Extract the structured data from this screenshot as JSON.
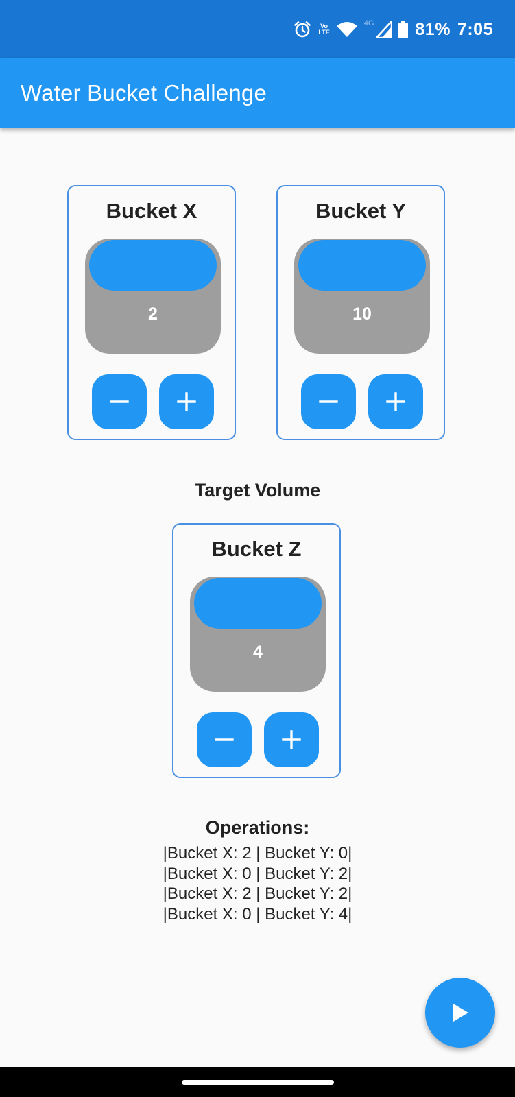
{
  "status_bar": {
    "volte_top": "Vo",
    "volte_bottom": "LTE",
    "network": "4G",
    "battery": "81%",
    "time": "7:05",
    "icons": [
      "alarm-icon",
      "volte-icon",
      "wifi-icon",
      "signal-icon",
      "battery-icon"
    ]
  },
  "app_bar": {
    "title": "Water Bucket Challenge"
  },
  "buckets": {
    "x": {
      "title": "Bucket X",
      "value": "2"
    },
    "y": {
      "title": "Bucket Y",
      "value": "10"
    },
    "z": {
      "title": "Bucket Z",
      "value": "4"
    }
  },
  "controls": {
    "minus_icon": "minus-icon",
    "plus_icon": "plus-icon"
  },
  "target": {
    "label": "Target Volume"
  },
  "operations": {
    "title": "Operations:",
    "items": [
      "|Bucket X: 2 | Bucket Y: 0|",
      "|Bucket X: 0 | Bucket Y: 2|",
      "|Bucket X: 2 | Bucket Y: 2|",
      "|Bucket X: 0 | Bucket Y: 4|"
    ]
  },
  "fab": {
    "icon": "play-icon"
  },
  "colors": {
    "status_bar": "#1976d2",
    "app_bar": "#2196f3",
    "accent": "#2196f3",
    "bucket_body": "#9e9e9e",
    "card_border": "#4a90e2",
    "background": "#fafafa"
  }
}
